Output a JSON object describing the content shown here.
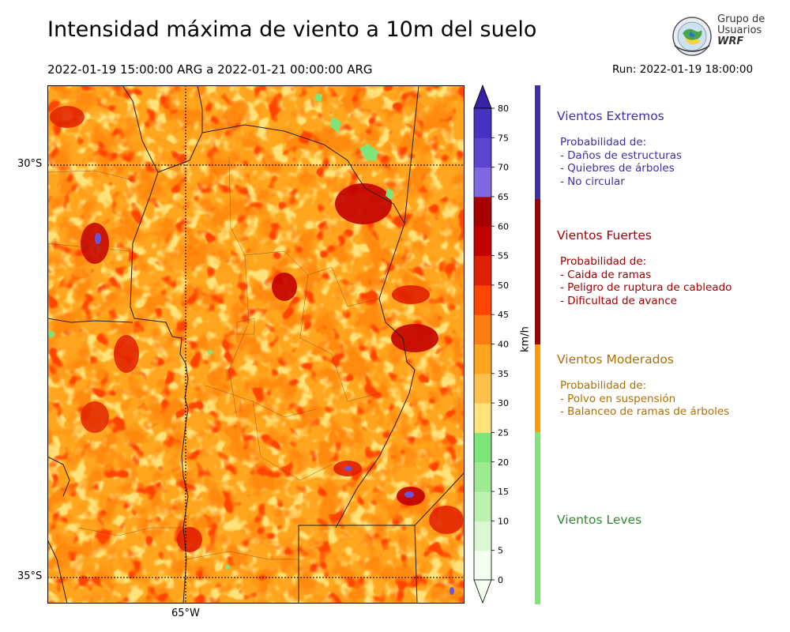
{
  "header": {
    "title": "Intensidad máxima de viento a 10m del suelo",
    "period": "2022-01-19 15:00:00 ARG  a  2022-01-21 00:00:00 ARG",
    "run": "Run: 2022-01-19 18:00:00"
  },
  "logo": {
    "line1": "Grupo de",
    "line2": "Usuarios",
    "line3": "WRF"
  },
  "map": {
    "lat_labels": [
      "30°S",
      "35°S"
    ],
    "lon_labels": [
      "65°W"
    ]
  },
  "colorbar": {
    "unit": "km/h",
    "ticks": [
      0,
      5,
      10,
      15,
      20,
      25,
      30,
      35,
      40,
      45,
      50,
      55,
      60,
      65,
      70,
      75,
      80
    ],
    "colors": [
      "#f4fff0",
      "#daf7d2",
      "#bdf1b0",
      "#9eea92",
      "#7ee57a",
      "#ffe27a",
      "#ffc14b",
      "#ffa51e",
      "#ff7d10",
      "#ff4400",
      "#e01f00",
      "#c30000",
      "#a60000",
      "#7f68e0",
      "#5d45d0",
      "#4632c0",
      "#3820a8"
    ],
    "min": 0,
    "max": 80
  },
  "legend": [
    {
      "title": "Vientos Extremos",
      "color": "#3d2fa8",
      "items": [
        "Probabilidad de:",
        "- Daños de estructuras",
        "- Quiebres de árboles",
        "- No circular"
      ]
    },
    {
      "title": "Vientos Fuertes",
      "color": "#a00000",
      "items": [
        "Probabilidad de:",
        "- Caida de ramas",
        "- Peligro de ruptura de cableado",
        "- Dificultad de avance"
      ]
    },
    {
      "title": "Vientos Moderados",
      "color": "#b07000",
      "items": [
        "Probabilidad de:",
        "- Polvo en suspensión",
        "- Balanceo de ramas de árboles"
      ]
    },
    {
      "title": "Vientos Leves",
      "color": "#2e8b2e",
      "items": []
    }
  ],
  "legend_bar_colors": [
    "#3d2fa8",
    "#a00000",
    "#ff9d00",
    "#7ee57a"
  ]
}
